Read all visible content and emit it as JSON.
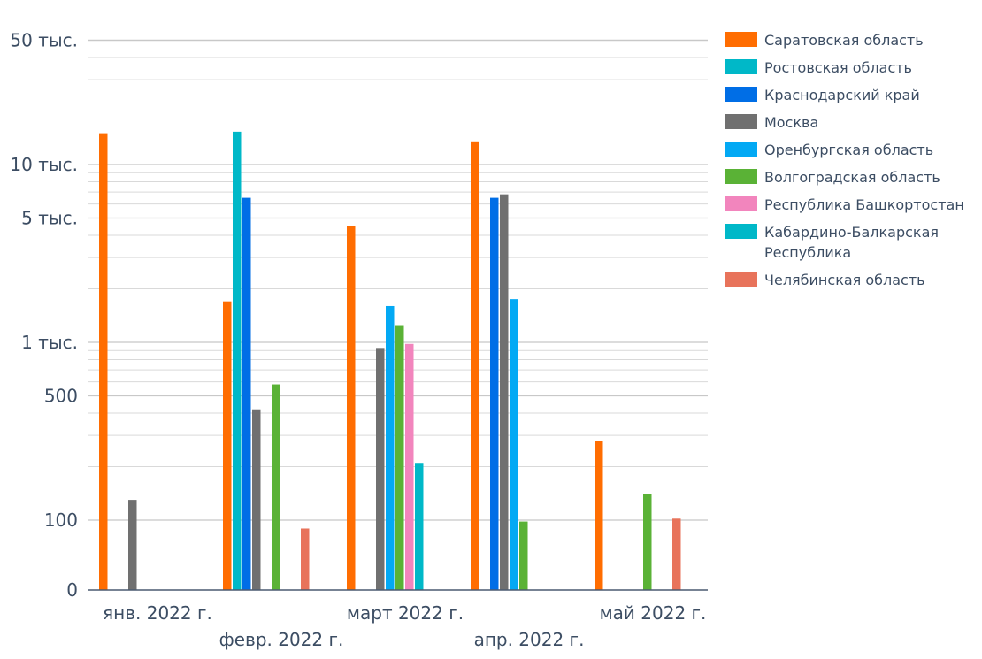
{
  "chart_data": {
    "type": "bar",
    "y_scale": "log",
    "grid": true,
    "legend_position": "right",
    "categories": [
      "янв. 2022 г.",
      "февр. 2022 г.",
      "март 2022 г.",
      "апр. 2022 г.",
      "май 2022 г."
    ],
    "y_ticks": [
      {
        "value": 0,
        "label": "0"
      },
      {
        "value": 100,
        "label": "100"
      },
      {
        "value": 500,
        "label": "500"
      },
      {
        "value": 1000,
        "label": "1 тыс."
      },
      {
        "value": 5000,
        "label": "5 тыс."
      },
      {
        "value": 10000,
        "label": "10 тыс."
      },
      {
        "value": 50000,
        "label": "50 тыс."
      }
    ],
    "series": [
      {
        "name": "Саратовская область",
        "color": "#ff6d01",
        "values": [
          15000,
          1700,
          4500,
          13500,
          280
        ]
      },
      {
        "name": "Ростовская область",
        "color": "#00b8c8",
        "values": [
          null,
          15300,
          null,
          null,
          null
        ]
      },
      {
        "name": "Краснодарский край",
        "color": "#006ee6",
        "values": [
          null,
          6500,
          null,
          6500,
          null
        ]
      },
      {
        "name": "Москва",
        "color": "#707070",
        "values": [
          130,
          420,
          930,
          6800,
          null
        ]
      },
      {
        "name": "Оренбургская область",
        "color": "#03a9f4",
        "values": [
          null,
          null,
          1600,
          1750,
          null
        ]
      },
      {
        "name": "Волгоградская область",
        "color": "#5ab236",
        "values": [
          null,
          580,
          1250,
          98,
          140
        ]
      },
      {
        "name": "Республика Башкортостан",
        "color": "#f285bd",
        "values": [
          null,
          null,
          980,
          null,
          null
        ]
      },
      {
        "name": "Кабардино-Балкарская Республика",
        "color": "#00b8c8",
        "values": [
          null,
          null,
          210,
          null,
          null
        ]
      },
      {
        "name": "Челябинская область",
        "color": "#e8735b",
        "values": [
          null,
          88,
          null,
          null,
          102
        ]
      }
    ]
  }
}
